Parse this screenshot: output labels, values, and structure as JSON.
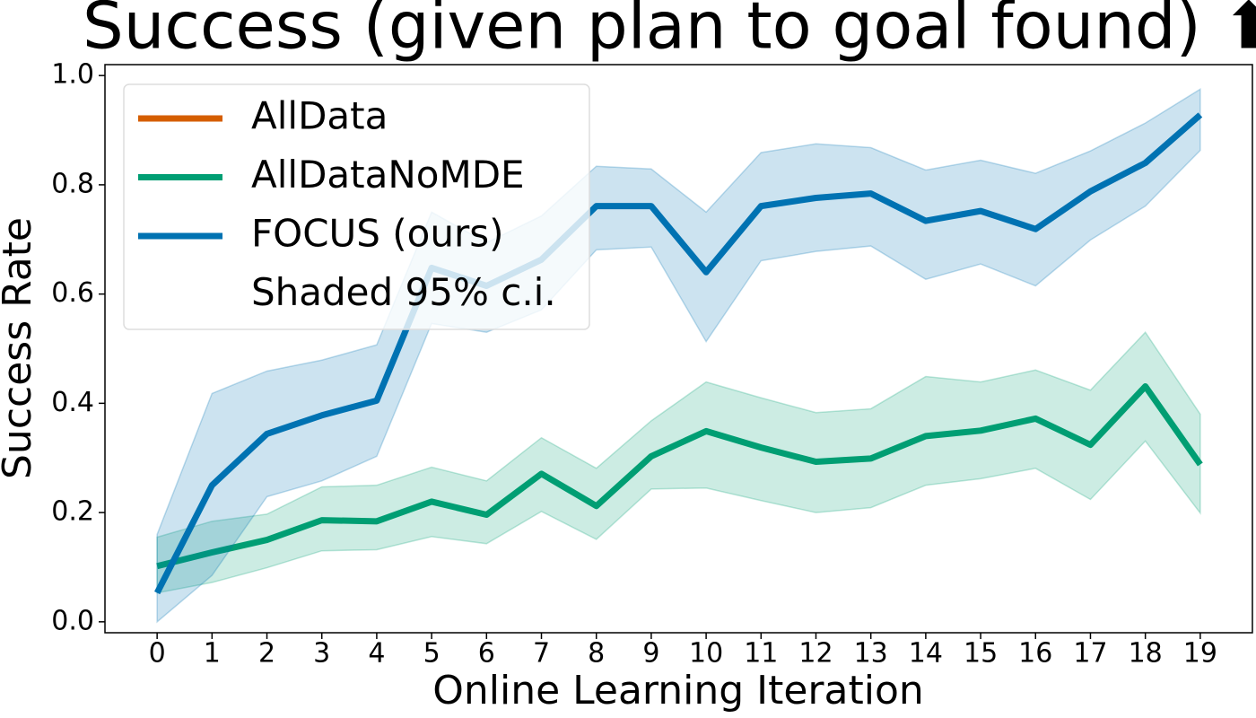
{
  "chart_data": {
    "type": "line",
    "title": "Success (given plan to goal found) ⬆",
    "x_label": "Online Learning Iteration",
    "y_label": "Success Rate",
    "x": [
      0,
      1,
      2,
      3,
      4,
      5,
      6,
      7,
      8,
      9,
      10,
      11,
      12,
      13,
      14,
      15,
      16,
      17,
      18,
      19
    ],
    "xlim": [
      -0.95,
      19.95
    ],
    "xticks": [
      0,
      1,
      2,
      3,
      4,
      5,
      6,
      7,
      8,
      9,
      10,
      11,
      12,
      13,
      14,
      15,
      16,
      17,
      18,
      19
    ],
    "ylim": [
      -0.02,
      1.02
    ],
    "yticks": [
      {
        "value": 0,
        "label": "0.0"
      },
      {
        "value": 0.2,
        "label": "0.2"
      },
      {
        "value": 0.4,
        "label": "0.4"
      },
      {
        "value": 0.6,
        "label": "0.6"
      },
      {
        "value": 0.8,
        "label": "0.8"
      },
      {
        "value": 1,
        "label": "1.0"
      }
    ],
    "legend_position": "upper left",
    "ci_label": "Shaded 95% c.i.",
    "series": [
      {
        "name": "AllData",
        "color": "#d55e00"
      },
      {
        "name": "AllDataNoMDE",
        "color": "#009e73",
        "values": [
          0.102,
          0.127,
          0.15,
          0.186,
          0.184,
          0.22,
          0.196,
          0.271,
          0.212,
          0.303,
          0.349,
          0.319,
          0.293,
          0.299,
          0.34,
          0.35,
          0.372,
          0.324,
          0.431,
          0.288
        ],
        "upper": [
          0.155,
          0.184,
          0.197,
          0.247,
          0.25,
          0.283,
          0.258,
          0.337,
          0.281,
          0.368,
          0.439,
          0.41,
          0.383,
          0.39,
          0.449,
          0.439,
          0.461,
          0.424,
          0.53,
          0.38
        ],
        "lower": [
          0.053,
          0.072,
          0.099,
          0.13,
          0.132,
          0.156,
          0.143,
          0.202,
          0.151,
          0.243,
          0.245,
          0.222,
          0.2,
          0.209,
          0.25,
          0.262,
          0.281,
          0.224,
          0.331,
          0.199
        ]
      },
      {
        "name": "FOCUS (ours)",
        "color": "#0072b2",
        "values": [
          0.053,
          0.25,
          0.344,
          0.378,
          0.405,
          0.648,
          0.615,
          0.663,
          0.761,
          0.761,
          0.64,
          0.761,
          0.776,
          0.784,
          0.734,
          0.752,
          0.719,
          0.788,
          0.84,
          0.928
        ],
        "upper": [
          0.16,
          0.418,
          0.459,
          0.479,
          0.507,
          0.75,
          0.694,
          0.743,
          0.834,
          0.829,
          0.75,
          0.859,
          0.875,
          0.868,
          0.827,
          0.845,
          0.821,
          0.862,
          0.913,
          0.975
        ],
        "lower": [
          0.0,
          0.085,
          0.229,
          0.258,
          0.303,
          0.546,
          0.53,
          0.571,
          0.681,
          0.686,
          0.513,
          0.661,
          0.678,
          0.688,
          0.627,
          0.655,
          0.615,
          0.699,
          0.761,
          0.863
        ]
      }
    ]
  }
}
